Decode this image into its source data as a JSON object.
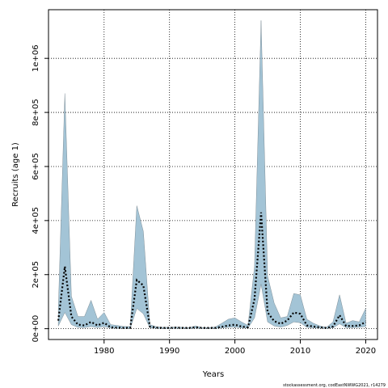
{
  "chart_data": {
    "type": "area",
    "xlabel": "Years",
    "ylabel": "Recruits (age 1)",
    "xlim": [
      1971.5,
      2021.8
    ],
    "ylim": [
      -40000,
      1180000
    ],
    "x_ticks": [
      1980,
      1990,
      2000,
      2010,
      2020
    ],
    "x_tick_labels": [
      "1980",
      "1990",
      "2000",
      "2010",
      "2020"
    ],
    "y_ticks": [
      0,
      200000,
      400000,
      600000,
      800000,
      1000000
    ],
    "y_tick_labels": [
      "0e+00",
      "2e+05",
      "4e+05",
      "6e+05",
      "8e+05",
      "1e+06"
    ],
    "grid": true,
    "band_color": "#a3c4d6",
    "line_color": "#000000",
    "years": [
      1973,
      1974,
      1975,
      1976,
      1977,
      1978,
      1979,
      1980,
      1981,
      1982,
      1983,
      1984,
      1985,
      1986,
      1987,
      1988,
      1989,
      1990,
      1991,
      1992,
      1993,
      1994,
      1995,
      1996,
      1997,
      1998,
      1999,
      2000,
      2001,
      2002,
      2003,
      2004,
      2005,
      2006,
      2007,
      2008,
      2009,
      2010,
      2011,
      2012,
      2013,
      2014,
      2015,
      2016,
      2017,
      2018,
      2019,
      2020
    ],
    "estimate": [
      30000,
      230000,
      45000,
      15000,
      12000,
      25000,
      12000,
      22000,
      5000,
      4000,
      3000,
      3000,
      180000,
      160000,
      8000,
      4000,
      3000,
      3000,
      4000,
      3000,
      3000,
      5000,
      3000,
      3000,
      3000,
      7000,
      12000,
      15000,
      8000,
      5000,
      110000,
      430000,
      60000,
      28000,
      18000,
      30000,
      60000,
      55000,
      12000,
      8000,
      5000,
      3000,
      8000,
      50000,
      10000,
      10000,
      12000,
      25000
    ],
    "upper": [
      70000,
      870000,
      120000,
      45000,
      45000,
      105000,
      35000,
      60000,
      15000,
      12000,
      8000,
      8000,
      455000,
      360000,
      15000,
      7000,
      5000,
      5000,
      6000,
      5000,
      4000,
      10000,
      4000,
      4000,
      6000,
      20000,
      35000,
      40000,
      25000,
      12000,
      230000,
      1140000,
      195000,
      95000,
      40000,
      45000,
      130000,
      125000,
      35000,
      20000,
      10000,
      5000,
      25000,
      125000,
      20000,
      30000,
      25000,
      75000
    ],
    "lower": [
      10000,
      60000,
      15000,
      5000,
      4000,
      8000,
      4000,
      8000,
      2000,
      1500,
      1000,
      1000,
      75000,
      55000,
      3000,
      1500,
      1000,
      1000,
      1500,
      1000,
      1000,
      2000,
      1000,
      1000,
      1000,
      3000,
      5000,
      6000,
      3000,
      2000,
      40000,
      165000,
      25000,
      10000,
      6000,
      12000,
      25000,
      22000,
      5000,
      3000,
      2000,
      1000,
      3000,
      18000,
      4000,
      4000,
      5000,
      8000
    ]
  },
  "footer": {
    "text": "stockassessment.org, codEastNWWG2021, r14279"
  }
}
